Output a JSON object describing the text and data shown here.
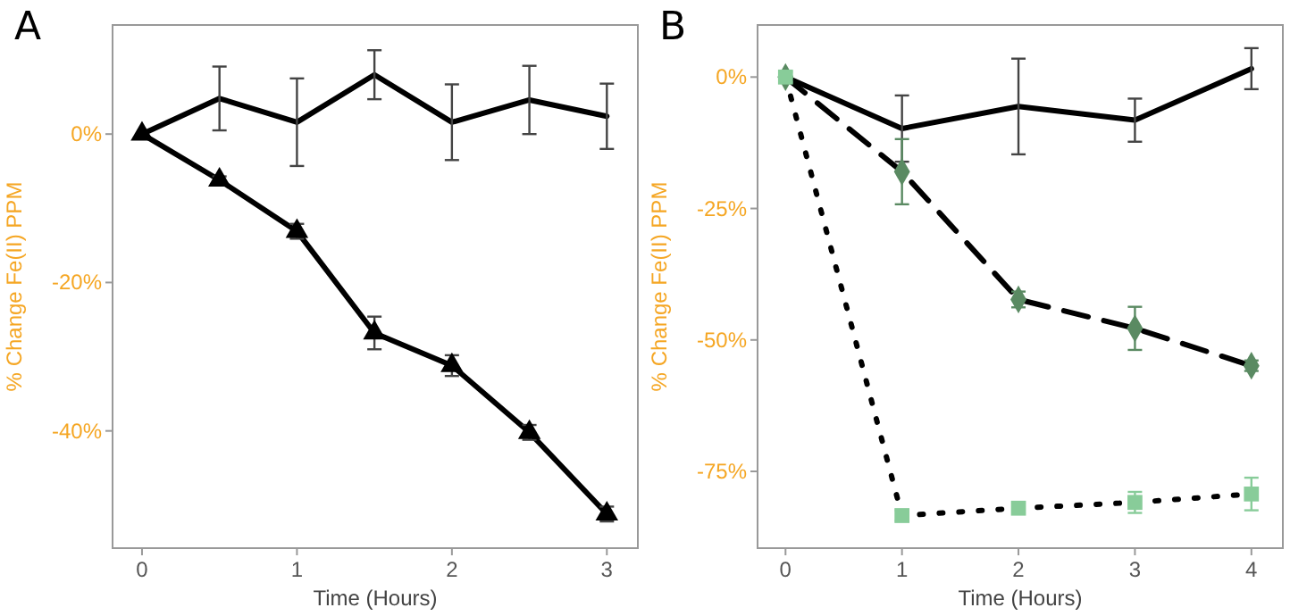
{
  "chart_data": [
    {
      "type": "line",
      "title": "A",
      "xlabel": "Time (Hours)",
      "ylabel": "% Change Fe(II) PPM",
      "xlim": [
        -0.19,
        3.2
      ],
      "ylim": [
        -55.8,
        14.7
      ],
      "xticks": [
        0,
        1,
        2,
        3
      ],
      "yticks": [
        {
          "value": 0,
          "label": "0%"
        },
        {
          "value": -20,
          "label": "-20%"
        },
        {
          "value": -40,
          "label": "-40%"
        }
      ],
      "grid": false,
      "series": [
        {
          "color": "#000000",
          "marker": "none",
          "line_style": "solid",
          "x": [
            0,
            0.5,
            1,
            1.5,
            2,
            2.5,
            3
          ],
          "values": [
            0,
            4.8,
            1.6,
            8.0,
            1.6,
            4.6,
            2.4
          ],
          "errors": [
            null,
            4.3,
            5.9,
            3.3,
            5.1,
            4.6,
            4.4
          ]
        },
        {
          "color": "#000000",
          "marker": "triangle",
          "line_style": "solid",
          "x": [
            0,
            0.5,
            1,
            1.5,
            2,
            2.5,
            3
          ],
          "values": [
            0,
            -6.2,
            -13.1,
            -26.8,
            -31.2,
            -40.2,
            -51.2
          ],
          "errors": [
            null,
            0.5,
            1,
            2.2,
            1.4,
            1,
            1
          ]
        }
      ]
    },
    {
      "type": "line",
      "title": "B",
      "xlabel": "Time (Hours)",
      "ylabel": "% Change Fe(II) PPM",
      "xlim": [
        -0.24,
        4.27
      ],
      "ylim": [
        -89.6,
        9.9
      ],
      "xticks": [
        0,
        1,
        2,
        3,
        4
      ],
      "yticks": [
        {
          "value": 0,
          "label": "0%"
        },
        {
          "value": -25,
          "label": "-25%"
        },
        {
          "value": -50,
          "label": "-50%"
        },
        {
          "value": -75,
          "label": "-75%"
        }
      ],
      "grid": false,
      "series": [
        {
          "color": "#000000",
          "marker": "none",
          "line_style": "solid",
          "x": [
            0,
            1,
            2,
            3,
            4
          ],
          "values": [
            0,
            -9.8,
            -5.6,
            -8.2,
            1.6
          ],
          "errors": [
            null,
            6.3,
            9.1,
            4.1,
            3.9
          ]
        },
        {
          "color": "#5a8a62",
          "marker": "diamond",
          "line_style": "dashed",
          "x": [
            0,
            1,
            2,
            3,
            4
          ],
          "values": [
            0,
            -18.0,
            -42.3,
            -47.8,
            -54.9
          ],
          "errors": [
            null,
            6.2,
            1.5,
            4.1,
            1
          ]
        },
        {
          "color": "#88cc99",
          "marker": "square",
          "line_style": "dotted",
          "x": [
            0,
            1,
            2,
            3,
            4
          ],
          "values": [
            0,
            -83.4,
            -82.0,
            -80.9,
            -79.3
          ],
          "errors": [
            1,
            1,
            1,
            2,
            3.1
          ]
        }
      ]
    }
  ]
}
